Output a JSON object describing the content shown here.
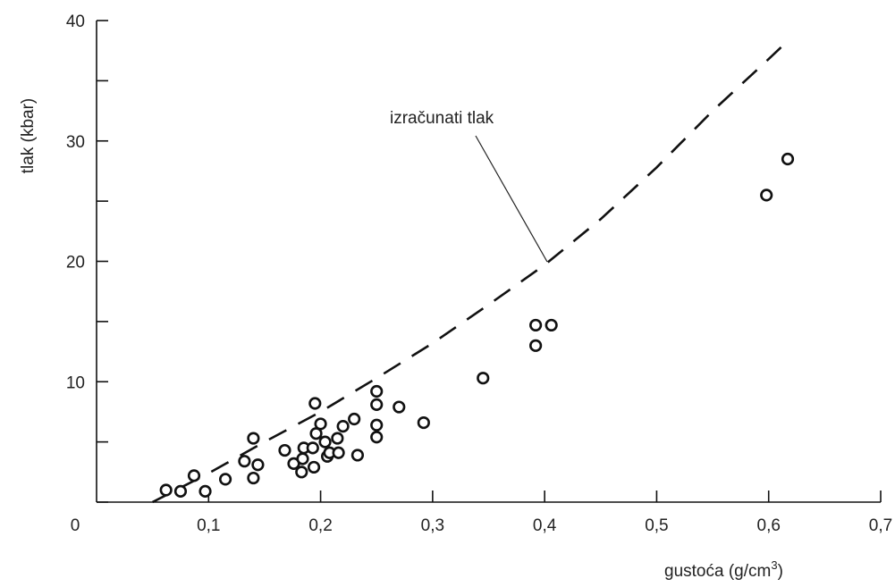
{
  "chart_data": {
    "type": "scatter",
    "xlabel": "gustoća (g/cm",
    "xlabel_sup": "3",
    "xlabel_close": ")",
    "ylabel": "tlak (kbar)",
    "xlim": [
      0,
      0.7
    ],
    "ylim": [
      0,
      40
    ],
    "x_ticks": [
      0.1,
      0.2,
      0.3,
      0.4,
      0.5,
      0.6,
      0.7
    ],
    "x_tick_labels": [
      "0",
      "0,1",
      "0,2",
      "0,3",
      "0,4",
      "0,5",
      "0,6",
      "0,7"
    ],
    "y_ticks": [
      0,
      5,
      10,
      15,
      20,
      25,
      30,
      35,
      40
    ],
    "y_tick_labels": [
      "10",
      "20",
      "30",
      "40"
    ],
    "y_tick_label_values": [
      10,
      20,
      30,
      40
    ],
    "grid": false,
    "series": [
      {
        "style": "open-circle-markers",
        "x": [
          0.062,
          0.075,
          0.087,
          0.097,
          0.115,
          0.132,
          0.14,
          0.14,
          0.144,
          0.168,
          0.176,
          0.183,
          0.184,
          0.185,
          0.193,
          0.194,
          0.195,
          0.196,
          0.2,
          0.204,
          0.206,
          0.208,
          0.215,
          0.216,
          0.22,
          0.23,
          0.233,
          0.25,
          0.25,
          0.25,
          0.25,
          0.27,
          0.292,
          0.345,
          0.392,
          0.392,
          0.406,
          0.598,
          0.617
        ],
        "y": [
          1.0,
          0.9,
          2.2,
          0.9,
          1.9,
          3.4,
          5.3,
          2.0,
          3.1,
          4.3,
          3.2,
          2.5,
          3.6,
          4.5,
          4.5,
          2.9,
          8.2,
          5.7,
          6.5,
          5.0,
          3.8,
          4.1,
          5.3,
          4.1,
          6.3,
          6.9,
          3.9,
          9.2,
          8.1,
          6.4,
          5.4,
          7.9,
          6.6,
          10.3,
          14.7,
          13.0,
          14.7,
          25.5,
          28.5
        ]
      },
      {
        "style": "dashed-curve",
        "x": [
          0.05,
          0.1,
          0.15,
          0.2,
          0.25,
          0.3,
          0.35,
          0.4,
          0.45,
          0.5,
          0.55,
          0.6,
          0.617
        ],
        "y": [
          0.0,
          2.4,
          5.0,
          7.5,
          10.3,
          13.2,
          16.4,
          19.7,
          23.5,
          27.8,
          32.5,
          36.8,
          38.3
        ]
      }
    ],
    "annotations": [
      {
        "text": "izračunati tlak"
      }
    ]
  }
}
